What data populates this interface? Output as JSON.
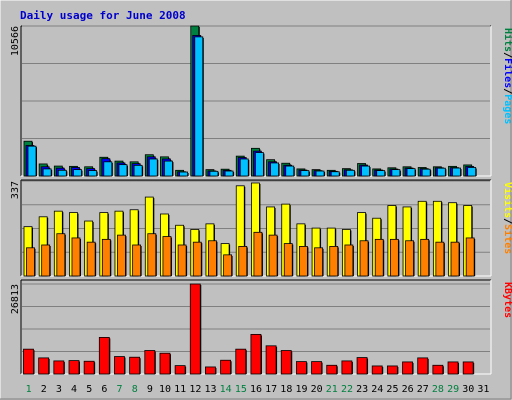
{
  "chart_data": {
    "type": "bar",
    "title": "Daily usage for June 2008",
    "days": [
      "1",
      "2",
      "3",
      "4",
      "5",
      "6",
      "7",
      "8",
      "9",
      "10",
      "11",
      "12",
      "13",
      "14",
      "15",
      "16",
      "17",
      "18",
      "19",
      "20",
      "21",
      "22",
      "23",
      "24",
      "25",
      "26",
      "27",
      "28",
      "29",
      "30",
      "31"
    ],
    "weekend_days": [
      "1",
      "7",
      "8",
      "14",
      "15",
      "21",
      "22",
      "28",
      "29"
    ],
    "colors": {
      "hits": "#008040",
      "files": "#0000ff",
      "pages": "#00c0ff",
      "visits": "#ffff00",
      "sites": "#ff8000",
      "kbytes": "#ff0000",
      "weekend_label": "#008040",
      "weekday_label": "#000000",
      "title": "#0000cc"
    },
    "panels": [
      {
        "id": "top",
        "max_label": "10566",
        "ymax": 10566,
        "legend": [
          {
            "text": "Hits",
            "color": "#008040"
          },
          {
            "text": "/",
            "color": "#000000"
          },
          {
            "text": "Files",
            "color": "#0000ff"
          },
          {
            "text": "/",
            "color": "#000000"
          },
          {
            "text": "Pages",
            "color": "#00c0ff"
          }
        ],
        "series": [
          {
            "name": "Hits",
            "values": [
              2450,
              850,
              700,
              680,
              650,
              1320,
              1050,
              1000,
              1500,
              1350,
              400,
              10566,
              450,
              480,
              1400,
              1950,
              1150,
              900,
              500,
              450,
              400,
              520,
              880,
              500,
              580,
              650,
              600,
              650,
              680,
              780,
              null
            ]
          },
          {
            "name": "Files",
            "values": [
              2150,
              650,
              550,
              600,
              520,
              1220,
              920,
              870,
              1350,
              1200,
              300,
              9900,
              360,
              400,
              1300,
              1750,
              1000,
              760,
              420,
              380,
              330,
              440,
              770,
              420,
              490,
              560,
              520,
              580,
              590,
              670,
              null
            ]
          },
          {
            "name": "Pages",
            "values": [
              2100,
              500,
              400,
              450,
              380,
              1000,
              800,
              750,
              1200,
              1050,
              280,
              9800,
              330,
              350,
              1200,
              1650,
              920,
              700,
              380,
              350,
              300,
              400,
              700,
              380,
              450,
              520,
              480,
              550,
              560,
              600,
              null
            ]
          }
        ]
      },
      {
        "id": "middle",
        "max_label": "337",
        "ymax": 337,
        "legend": [
          {
            "text": "Visits",
            "color": "#ffff00"
          },
          {
            "text": "/",
            "color": "#000000"
          },
          {
            "text": "Sites",
            "color": "#ff8000"
          }
        ],
        "series": [
          {
            "name": "Visits",
            "values": [
              175,
              210,
              230,
              225,
              195,
              225,
              230,
              235,
              280,
              220,
              180,
              165,
              185,
              115,
              320,
              330,
              245,
              255,
              185,
              170,
              170,
              165,
              225,
              205,
              250,
              245,
              265,
              265,
              260,
              250,
              null
            ]
          },
          {
            "name": "Sites",
            "values": [
              100,
              110,
              150,
              135,
              120,
              130,
              145,
              110,
              150,
              140,
              110,
              120,
              125,
              75,
              105,
              155,
              145,
              115,
              105,
              100,
              105,
              110,
              125,
              130,
              130,
              125,
              130,
              120,
              120,
              135,
              null
            ]
          }
        ]
      },
      {
        "id": "bottom",
        "max_label": "26813",
        "ymax": 26813,
        "legend": [
          {
            "text": "KBytes",
            "color": "#ff0000"
          }
        ],
        "series": [
          {
            "name": "KBytes",
            "values": [
              7400,
              4800,
              3900,
              4000,
              3800,
              10900,
              5200,
              5000,
              7000,
              6200,
              2500,
              26813,
              2100,
              4100,
              7400,
              11800,
              8400,
              7000,
              3700,
              3700,
              2600,
              3900,
              4900,
              2400,
              2400,
              3600,
              4800,
              2600,
              3600,
              3600,
              null
            ]
          }
        ]
      }
    ]
  }
}
